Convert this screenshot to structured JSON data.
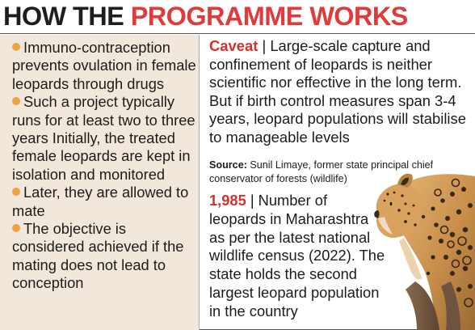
{
  "headline": {
    "part1": "HOW THE ",
    "part2": "PROGRAMME WORKS"
  },
  "left_points": [
    "Immuno-contraception prevents ovulation in female leopards through drugs",
    "Such a project typically runs for at least two to three years Initially, the treated female leopards are kept in isolation and monitored",
    "Later, they are allowed to mate",
    "The objective is considered achieved if the mating does not lead to conception"
  ],
  "caveat": {
    "label": "Caveat",
    "separator": " | ",
    "text": "Large-scale capture and confinement of leopards is neither scientific nor effective in the long term. But if birth control measures span 3-4 years, leopard populations will stabilise to manageable levels"
  },
  "source": {
    "label": "Source:",
    "text": " Sunil Limaye, former state principal chief conservator of forests (wildlife)"
  },
  "stat": {
    "number": "1,985",
    "separator": " | ",
    "text": "Number of leopards in Maharashtra as per the latest national wildlife census (2022). The state holds the second largest leopard population in the country"
  },
  "colors": {
    "headline_red": "#e03a3a",
    "accent_red": "#d6302b",
    "bullet_orange": "#eda33f",
    "left_panel_bg": "#f1e7da"
  },
  "icons": {
    "bullet": "orange-dot-icon",
    "image": "leopard-photo"
  }
}
